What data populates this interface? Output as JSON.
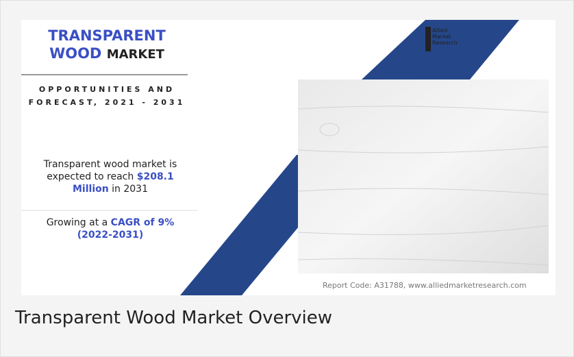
{
  "header": {
    "title_line1": "TRANSPARENT",
    "title_word": "WOOD",
    "title_rest": "MARKET",
    "subtitle": "OPPORTUNITIES AND FORECAST, 2021 - 2031"
  },
  "logo": {
    "line1": "Allied",
    "line2": "Market",
    "line3": "Research"
  },
  "stats": [
    {
      "before": "Transparent wood market is expected to reach",
      "highlight": "$208.1 Million",
      "after": "in 2031"
    },
    {
      "before": "Growing at a",
      "highlight": "CAGR of 9% (2022-2031)"
    }
  ],
  "footer": "Report Code: A31788, www.alliedmarketresearch.com",
  "caption": "Transparent Wood Market Overview"
}
